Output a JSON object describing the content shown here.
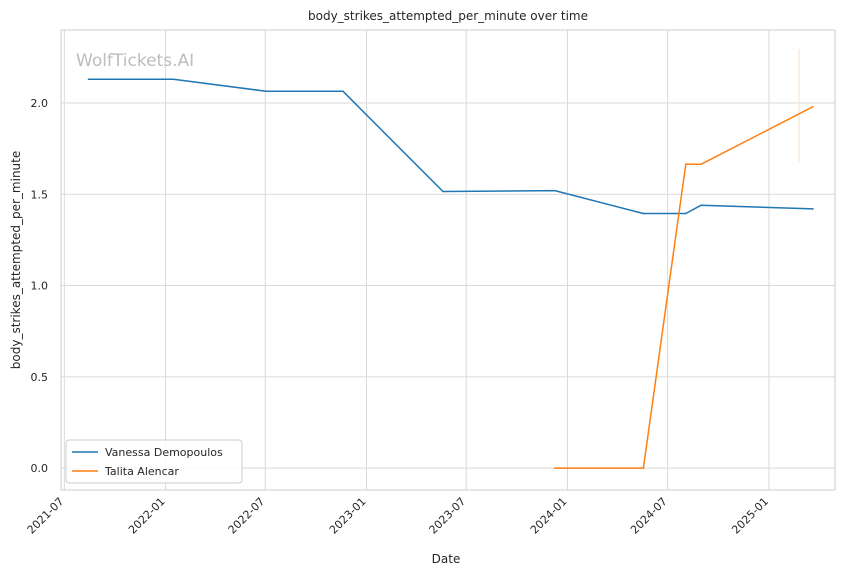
{
  "chart_data": {
    "type": "line",
    "title": "body_strikes_attempted_per_minute over time",
    "xlabel": "Date",
    "ylabel": "body_strikes_attempted_per_minute",
    "watermark": "WolfTickets.AI",
    "x_ticks": [
      "2021-07",
      "2022-01",
      "2022-07",
      "2023-01",
      "2023-07",
      "2024-01",
      "2024-07",
      "2025-01"
    ],
    "y_ticks": [
      "0.0",
      "0.5",
      "1.0",
      "1.5",
      "2.0"
    ],
    "ylim": [
      -0.12,
      2.4
    ],
    "xlim": [
      "2021-06-25",
      "2025-05-01"
    ],
    "grid": true,
    "legend_position": "lower-left",
    "series": [
      {
        "name": "Vanessa Demopoulos",
        "color": "#1f77b4",
        "points": [
          {
            "x": "2021-08-14",
            "y": 2.13
          },
          {
            "x": "2022-01-15",
            "y": 2.13
          },
          {
            "x": "2022-07-02",
            "y": 2.065
          },
          {
            "x": "2022-11-19",
            "y": 2.065
          },
          {
            "x": "2023-05-20",
            "y": 1.515
          },
          {
            "x": "2023-12-09",
            "y": 1.52
          },
          {
            "x": "2024-05-18",
            "y": 1.395
          },
          {
            "x": "2024-08-03",
            "y": 1.395
          },
          {
            "x": "2024-08-31",
            "y": 1.44
          },
          {
            "x": "2025-03-22",
            "y": 1.42
          }
        ]
      },
      {
        "name": "Talita Alencar",
        "color": "#ff7f0e",
        "points": [
          {
            "x": "2023-12-09",
            "y": 0.0
          },
          {
            "x": "2024-05-18",
            "y": 0.0
          },
          {
            "x": "2024-08-03",
            "y": 1.665
          },
          {
            "x": "2024-08-31",
            "y": 1.665
          },
          {
            "x": "2025-03-22",
            "y": 1.98
          }
        ]
      }
    ]
  }
}
